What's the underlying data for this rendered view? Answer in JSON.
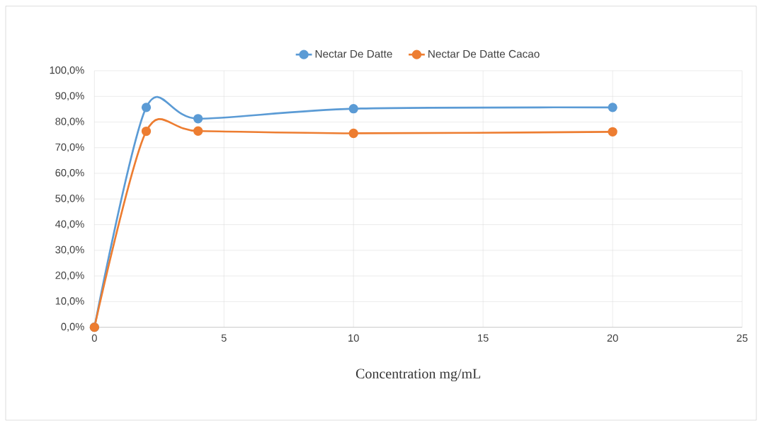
{
  "chart_data": {
    "type": "line",
    "xlabel": "Concentration mg/mL",
    "x": [
      0,
      2,
      4,
      10,
      20
    ],
    "series": [
      {
        "name": "Nectar De Datte",
        "color": "#5b9bd5",
        "values": [
          0,
          85.7,
          81.3,
          85.2,
          85.7
        ]
      },
      {
        "name": "Nectar De Datte Cacao",
        "color": "#ed7d31",
        "values": [
          0,
          76.4,
          76.5,
          75.6,
          76.2
        ]
      }
    ],
    "xlim": [
      0,
      25
    ],
    "xticks": [
      0,
      5,
      10,
      15,
      20,
      25
    ],
    "ylim": [
      0,
      100
    ],
    "yticks": [
      {
        "value": 0,
        "label": "0,0%"
      },
      {
        "value": 10,
        "label": "10,0%"
      },
      {
        "value": 20,
        "label": "20,0%"
      },
      {
        "value": 30,
        "label": "30,0%"
      },
      {
        "value": 40,
        "label": "40,0%"
      },
      {
        "value": 50,
        "label": "50,0%"
      },
      {
        "value": 60,
        "label": "60,0%"
      },
      {
        "value": 70,
        "label": "70,0%"
      },
      {
        "value": 80,
        "label": "80,0%"
      },
      {
        "value": 90,
        "label": "90,0%"
      },
      {
        "value": 100,
        "label": "100,0%"
      }
    ],
    "grid": true,
    "legend": "top",
    "marker": "circle",
    "line_style": "solid"
  }
}
